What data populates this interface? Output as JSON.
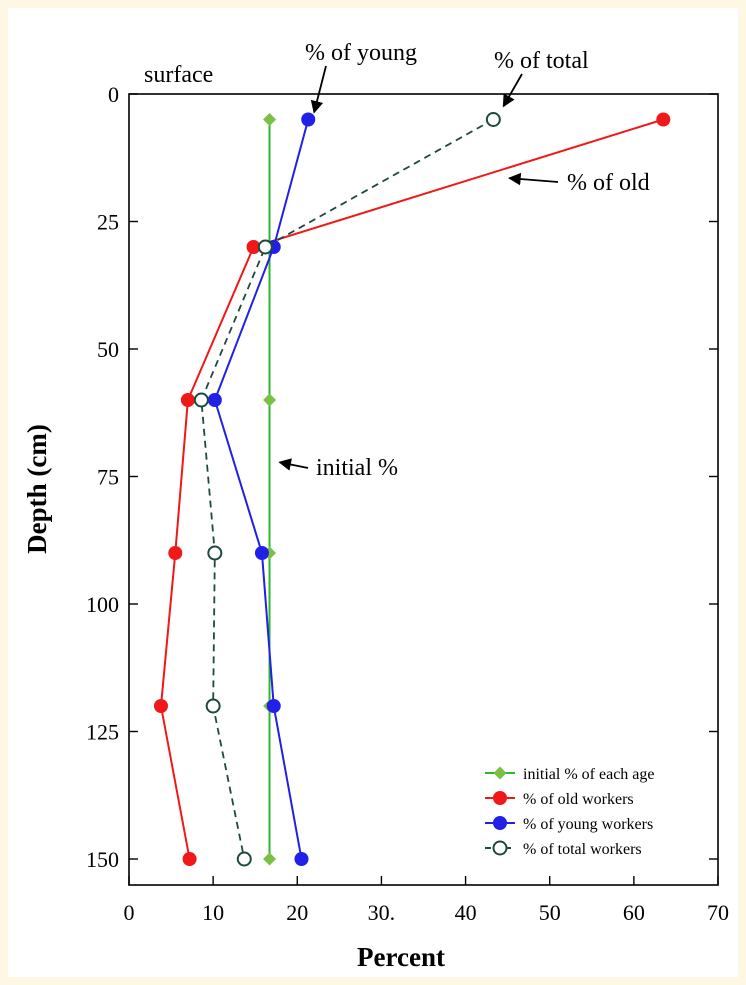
{
  "colors": {
    "page_background": "#fdf7e3",
    "figure_background": "#ffffff",
    "initial": "#2db82d",
    "initial_marker": "#7ac143",
    "old": "#f01818",
    "young": "#2020e6",
    "total": "#1d4a3f"
  },
  "chart_data": {
    "type": "line",
    "orientation": "depth-profile (x = percent, y = depth increasing downward)",
    "title": "",
    "xlabel": "Percent",
    "ylabel": "Depth (cm)",
    "xlim": [
      0,
      70
    ],
    "ylim": [
      0,
      155
    ],
    "y_inverted": true,
    "grid": false,
    "legend_position": "bottom-right",
    "x_ticks": [
      {
        "value": 0,
        "label": "0"
      },
      {
        "value": 10,
        "label": "10"
      },
      {
        "value": 20,
        "label": "20"
      },
      {
        "value": 30,
        "label": "30."
      },
      {
        "value": 40,
        "label": "40"
      },
      {
        "value": 50,
        "label": "50"
      },
      {
        "value": 60,
        "label": "60"
      },
      {
        "value": 70,
        "label": "70"
      }
    ],
    "y_ticks": [
      {
        "value": 0,
        "label": "0"
      },
      {
        "value": 25,
        "label": "25"
      },
      {
        "value": 50,
        "label": "50"
      },
      {
        "value": 75,
        "label": "75"
      },
      {
        "value": 100,
        "label": "100"
      },
      {
        "value": 125,
        "label": "125"
      },
      {
        "value": 150,
        "label": "150"
      }
    ],
    "series": [
      {
        "name": "initial % of each age",
        "color": "#2db82d",
        "line": "solid",
        "marker": "diamond-filled",
        "points": [
          [
            16.7,
            5
          ],
          [
            16.7,
            30
          ],
          [
            16.7,
            60
          ],
          [
            16.7,
            90
          ],
          [
            16.7,
            120
          ],
          [
            16.7,
            150
          ]
        ]
      },
      {
        "name": "% of old workers",
        "color": "#f01818",
        "line": "solid",
        "marker": "circle-filled",
        "points": [
          [
            63.5,
            5
          ],
          [
            14.8,
            30
          ],
          [
            7.0,
            60
          ],
          [
            5.5,
            90
          ],
          [
            3.8,
            120
          ],
          [
            7.2,
            150
          ]
        ]
      },
      {
        "name": "% of young workers",
        "color": "#2020e6",
        "line": "solid",
        "marker": "circle-filled",
        "points": [
          [
            21.3,
            5
          ],
          [
            17.2,
            30
          ],
          [
            10.2,
            60
          ],
          [
            15.8,
            90
          ],
          [
            17.2,
            120
          ],
          [
            20.5,
            150
          ]
        ]
      },
      {
        "name": "% of total workers",
        "color": "#1d4a3f",
        "line": "dashed",
        "marker": "circle-open",
        "points": [
          [
            43.3,
            5
          ],
          [
            16.2,
            30
          ],
          [
            8.6,
            60
          ],
          [
            10.2,
            90
          ],
          [
            10.0,
            120
          ],
          [
            13.7,
            150
          ]
        ]
      }
    ],
    "annotations": [
      {
        "text": "surface",
        "arrow": false
      },
      {
        "text": "% of young",
        "arrow_to": [
          22,
          3.6
        ]
      },
      {
        "text": "% of total",
        "arrow_to": [
          44.5,
          2.4
        ]
      },
      {
        "text": "% of old",
        "arrow_to": [
          45.2,
          16.5
        ]
      },
      {
        "text": "initial %",
        "arrow_to": [
          17.9,
          72.2
        ]
      }
    ]
  }
}
